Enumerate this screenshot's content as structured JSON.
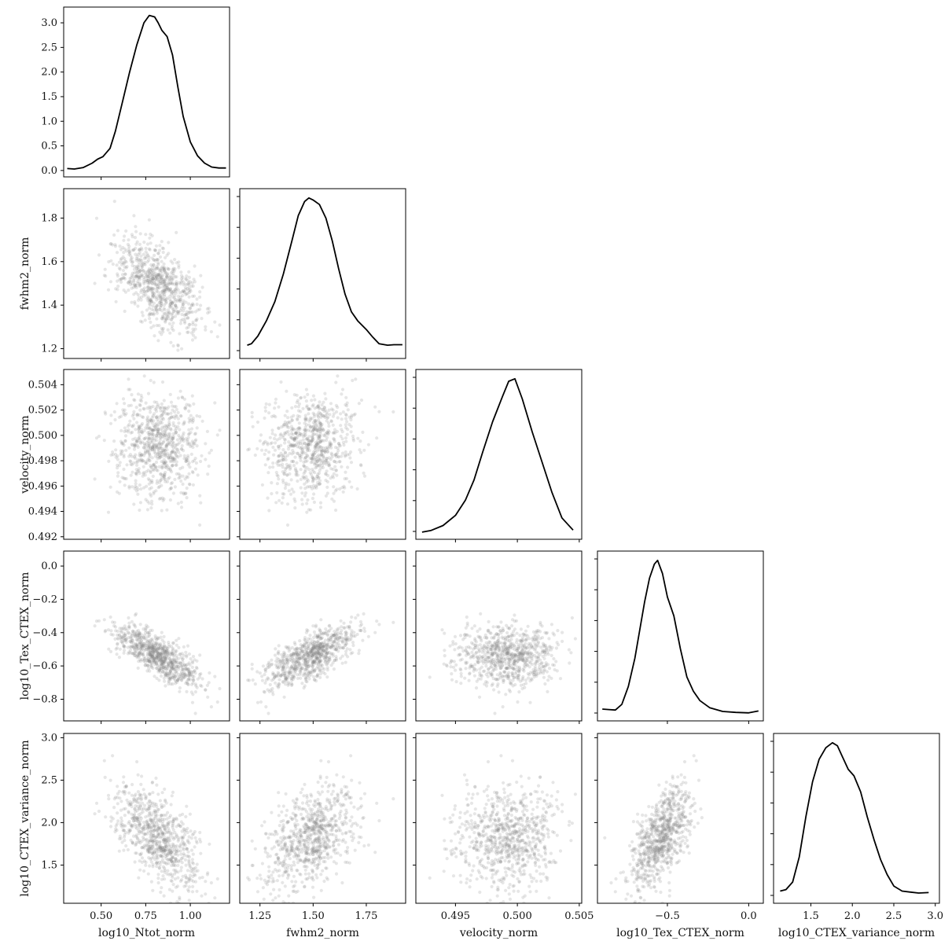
{
  "chart_data": {
    "type": "scatter",
    "title": "",
    "variables": [
      {
        "name": "log10_Ntot_norm",
        "range": [
          0.29,
          1.22
        ],
        "ticks": [
          0.5,
          0.75,
          1.0
        ],
        "tick_labels": [
          "0.50",
          "0.75",
          "1.00"
        ],
        "mean": 0.82,
        "sd": 0.12,
        "kde": {
          "x": [
            0.31,
            0.35,
            0.4,
            0.45,
            0.48,
            0.51,
            0.55,
            0.58,
            0.62,
            0.66,
            0.7,
            0.74,
            0.77,
            0.8,
            0.82,
            0.84,
            0.87,
            0.9,
            0.93,
            0.96,
            1.0,
            1.04,
            1.08,
            1.12,
            1.16,
            1.2
          ],
          "y": [
            0.04,
            0.03,
            0.06,
            0.15,
            0.23,
            0.28,
            0.45,
            0.8,
            1.4,
            2.0,
            2.55,
            3.0,
            3.15,
            3.12,
            3.0,
            2.85,
            2.72,
            2.35,
            1.7,
            1.1,
            0.58,
            0.3,
            0.15,
            0.07,
            0.05,
            0.05
          ]
        },
        "diag_ylim": [
          -0.13,
          3.32
        ],
        "diag_ticks": [
          0.0,
          0.5,
          1.0,
          1.5,
          2.0,
          2.5,
          3.0
        ],
        "diag_tick_labels": [
          "0.0",
          "0.5",
          "1.0",
          "1.5",
          "2.0",
          "2.5",
          "3.0"
        ]
      },
      {
        "name": "fwhm2_norm",
        "range": [
          1.155,
          1.935
        ],
        "ticks": [
          1.2,
          1.4,
          1.6,
          1.8
        ],
        "tick_labels": [
          "1.2",
          "1.4",
          "1.6",
          "1.8"
        ],
        "x_ticks": [
          1.25,
          1.5,
          1.75
        ],
        "x_tick_labels": [
          "1.25",
          "1.50",
          "1.75"
        ],
        "mean": 1.49,
        "sd": 0.11,
        "kde": {
          "x": [
            1.19,
            1.21,
            1.24,
            1.28,
            1.32,
            1.36,
            1.4,
            1.43,
            1.46,
            1.48,
            1.5,
            1.53,
            1.56,
            1.59,
            1.62,
            1.65,
            1.68,
            1.71,
            1.75,
            1.78,
            1.81,
            1.85,
            1.88,
            1.92
          ],
          "y": [
            0.14,
            0.17,
            0.32,
            0.62,
            1.0,
            1.55,
            2.2,
            2.7,
            2.98,
            3.05,
            3.01,
            2.92,
            2.65,
            2.2,
            1.65,
            1.15,
            0.8,
            0.62,
            0.45,
            0.3,
            0.17,
            0.14,
            0.15,
            0.15
          ]
        }
      },
      {
        "name": "velocity_norm",
        "range": [
          0.4918,
          0.5052
        ],
        "ticks": [
          0.492,
          0.494,
          0.496,
          0.498,
          0.5,
          0.502,
          0.504
        ],
        "tick_labels": [
          "0.492",
          "0.494",
          "0.496",
          "0.498",
          "0.500",
          "0.502",
          "0.504"
        ],
        "x_ticks": [
          0.495,
          0.5,
          0.505
        ],
        "x_tick_labels": [
          "0.495",
          "0.500",
          "0.505"
        ],
        "mean": 0.4993,
        "sd": 0.0022,
        "kde": {
          "x": [
            0.4923,
            0.493,
            0.494,
            0.495,
            0.4958,
            0.4965,
            0.4972,
            0.498,
            0.4988,
            0.4993,
            0.4998,
            0.5004,
            0.5012,
            0.502,
            0.5028,
            0.5036,
            0.5045
          ],
          "y": [
            0.02,
            0.05,
            0.15,
            0.35,
            0.65,
            1.05,
            1.6,
            2.2,
            2.7,
            3.0,
            3.05,
            2.65,
            2.0,
            1.4,
            0.8,
            0.3,
            0.06
          ]
        }
      },
      {
        "name": "log10_Tex_CTEX_norm",
        "range": [
          -0.93,
          0.09
        ],
        "ticks": [
          -0.8,
          -0.6,
          -0.4,
          -0.2,
          0.0
        ],
        "tick_labels": [
          "−0.8",
          "−0.6",
          "−0.4",
          "−0.2",
          "0.0"
        ],
        "x_ticks": [
          -0.5,
          0.0
        ],
        "x_tick_labels": [
          "−0.5",
          "0.0"
        ],
        "mean": -0.54,
        "sd": 0.08,
        "kde": {
          "x": [
            -0.9,
            -0.86,
            -0.82,
            -0.78,
            -0.74,
            -0.7,
            -0.67,
            -0.64,
            -0.61,
            -0.58,
            -0.56,
            -0.53,
            -0.5,
            -0.46,
            -0.42,
            -0.38,
            -0.34,
            -0.3,
            -0.24,
            -0.16,
            -0.08,
            0.0,
            0.06
          ],
          "y": [
            0.12,
            0.11,
            0.1,
            0.22,
            0.6,
            1.2,
            1.8,
            2.4,
            2.9,
            3.2,
            3.28,
            3.0,
            2.5,
            2.1,
            1.4,
            0.8,
            0.5,
            0.3,
            0.15,
            0.07,
            0.05,
            0.04,
            0.08
          ]
        }
      },
      {
        "name": "log10_CTEX_variance_norm",
        "range": [
          1.05,
          3.05
        ],
        "ticks": [
          1.5,
          2.0,
          2.5,
          3.0
        ],
        "tick_labels": [
          "1.5",
          "2.0",
          "2.5",
          "3.0"
        ],
        "x_ticks": [
          1.5,
          2.0,
          2.5,
          3.0
        ],
        "x_tick_labels": [
          "1.5",
          "2.0",
          "2.5",
          "3.0"
        ],
        "mean": 1.82,
        "sd": 0.26,
        "kde": {
          "x": [
            1.13,
            1.2,
            1.28,
            1.36,
            1.44,
            1.52,
            1.6,
            1.68,
            1.76,
            1.82,
            1.88,
            1.95,
            2.02,
            2.1,
            2.18,
            2.26,
            2.34,
            2.42,
            2.5,
            2.6,
            2.7,
            2.8,
            2.92
          ],
          "y": [
            0.12,
            0.15,
            0.3,
            0.8,
            1.6,
            2.3,
            2.75,
            2.98,
            3.08,
            3.02,
            2.8,
            2.55,
            2.42,
            2.1,
            1.6,
            1.15,
            0.75,
            0.45,
            0.22,
            0.12,
            0.1,
            0.08,
            0.09
          ]
        }
      }
    ],
    "correlations": [
      {
        "pair": [
          "log10_Ntot_norm",
          "fwhm2_norm"
        ],
        "rho": -0.55
      },
      {
        "pair": [
          "log10_Ntot_norm",
          "velocity_norm"
        ],
        "rho": 0.0
      },
      {
        "pair": [
          "fwhm2_norm",
          "velocity_norm"
        ],
        "rho": 0.0
      },
      {
        "pair": [
          "log10_Ntot_norm",
          "log10_Tex_CTEX_norm"
        ],
        "rho": -0.65
      },
      {
        "pair": [
          "fwhm2_norm",
          "log10_Tex_CTEX_norm"
        ],
        "rho": 0.45
      },
      {
        "pair": [
          "velocity_norm",
          "log10_Tex_CTEX_norm"
        ],
        "rho": 0.0
      },
      {
        "pair": [
          "log10_Ntot_norm",
          "log10_CTEX_variance_norm"
        ],
        "rho": -0.25
      },
      {
        "pair": [
          "fwhm2_norm",
          "log10_CTEX_variance_norm"
        ],
        "rho": 0.15
      },
      {
        "pair": [
          "velocity_norm",
          "log10_CTEX_variance_norm"
        ],
        "rho": 0.0
      },
      {
        "pair": [
          "log10_Tex_CTEX_norm",
          "log10_CTEX_variance_norm"
        ],
        "rho": 0.3
      }
    ],
    "n_samples": 800,
    "point_color": "#808080",
    "line_color": "#000000",
    "grid": false
  }
}
